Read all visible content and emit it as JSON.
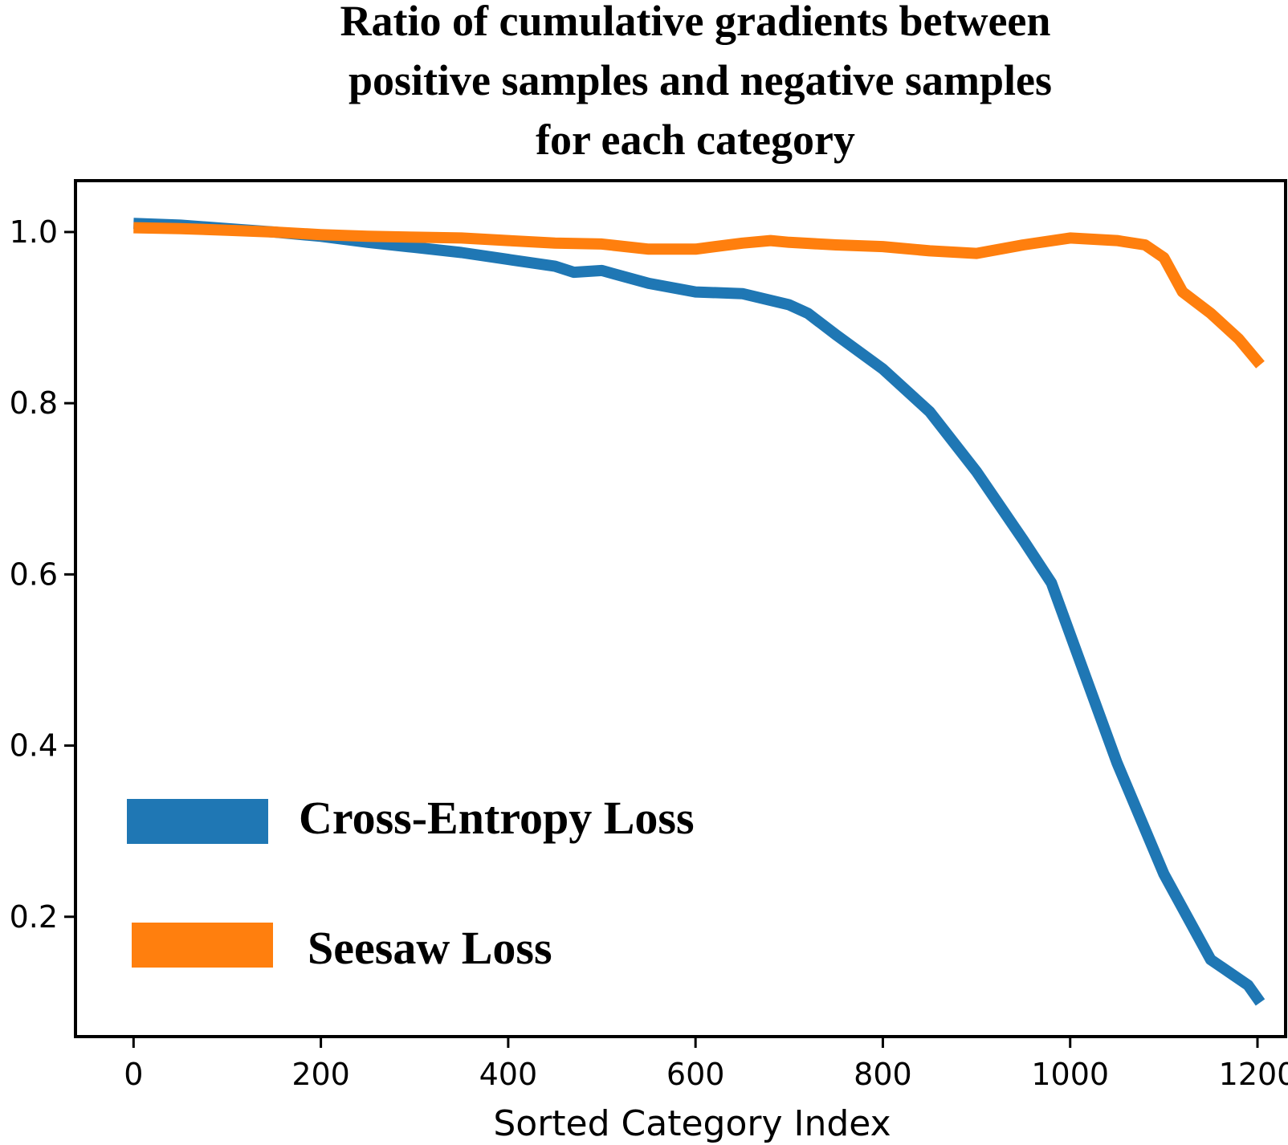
{
  "chart_data": {
    "type": "line",
    "title": "Ratio of cumulative gradients between positive samples and negative samples for each category",
    "title_lines": [
      "Ratio of cumulative gradients between",
      "positive samples and negative samples",
      "for each category"
    ],
    "xlabel": "Sorted Category Index",
    "ylabel": "",
    "xlim": [
      -62,
      1230
    ],
    "ylim": [
      0.06,
      1.06
    ],
    "x_ticks": [
      0,
      200,
      400,
      600,
      800,
      1000,
      1200
    ],
    "x_tick_labels": [
      "0",
      "200",
      "400",
      "600",
      "800",
      "1000",
      "1200"
    ],
    "y_ticks": [
      0.2,
      0.4,
      0.6,
      0.8,
      1.0
    ],
    "y_tick_labels": [
      "0.2",
      "0.4",
      "0.6",
      "0.8",
      "1.0"
    ],
    "grid": false,
    "legend_position": "lower-left",
    "series": [
      {
        "name": "Cross-Entropy Loss",
        "color": "#1f77b4",
        "x": [
          0,
          50,
          100,
          150,
          200,
          250,
          300,
          350,
          400,
          450,
          470,
          500,
          550,
          600,
          650,
          700,
          720,
          750,
          800,
          850,
          900,
          950,
          980,
          1000,
          1050,
          1100,
          1150,
          1190,
          1203
        ],
        "y": [
          1.01,
          1.008,
          1.004,
          1.0,
          0.995,
          0.988,
          0.982,
          0.976,
          0.968,
          0.96,
          0.953,
          0.955,
          0.94,
          0.93,
          0.928,
          0.915,
          0.905,
          0.88,
          0.84,
          0.79,
          0.72,
          0.64,
          0.59,
          0.53,
          0.38,
          0.25,
          0.15,
          0.12,
          0.1
        ]
      },
      {
        "name": "Seesaw Loss",
        "color": "#ff7f0e",
        "x": [
          0,
          50,
          100,
          150,
          200,
          250,
          300,
          350,
          400,
          450,
          500,
          550,
          600,
          650,
          680,
          700,
          750,
          800,
          850,
          900,
          950,
          1000,
          1050,
          1080,
          1100,
          1120,
          1150,
          1180,
          1203
        ],
        "y": [
          1.005,
          1.004,
          1.002,
          1.0,
          0.997,
          0.995,
          0.994,
          0.993,
          0.99,
          0.987,
          0.986,
          0.98,
          0.98,
          0.987,
          0.99,
          0.988,
          0.985,
          0.983,
          0.978,
          0.975,
          0.985,
          0.993,
          0.99,
          0.985,
          0.97,
          0.93,
          0.905,
          0.875,
          0.845
        ]
      }
    ]
  }
}
